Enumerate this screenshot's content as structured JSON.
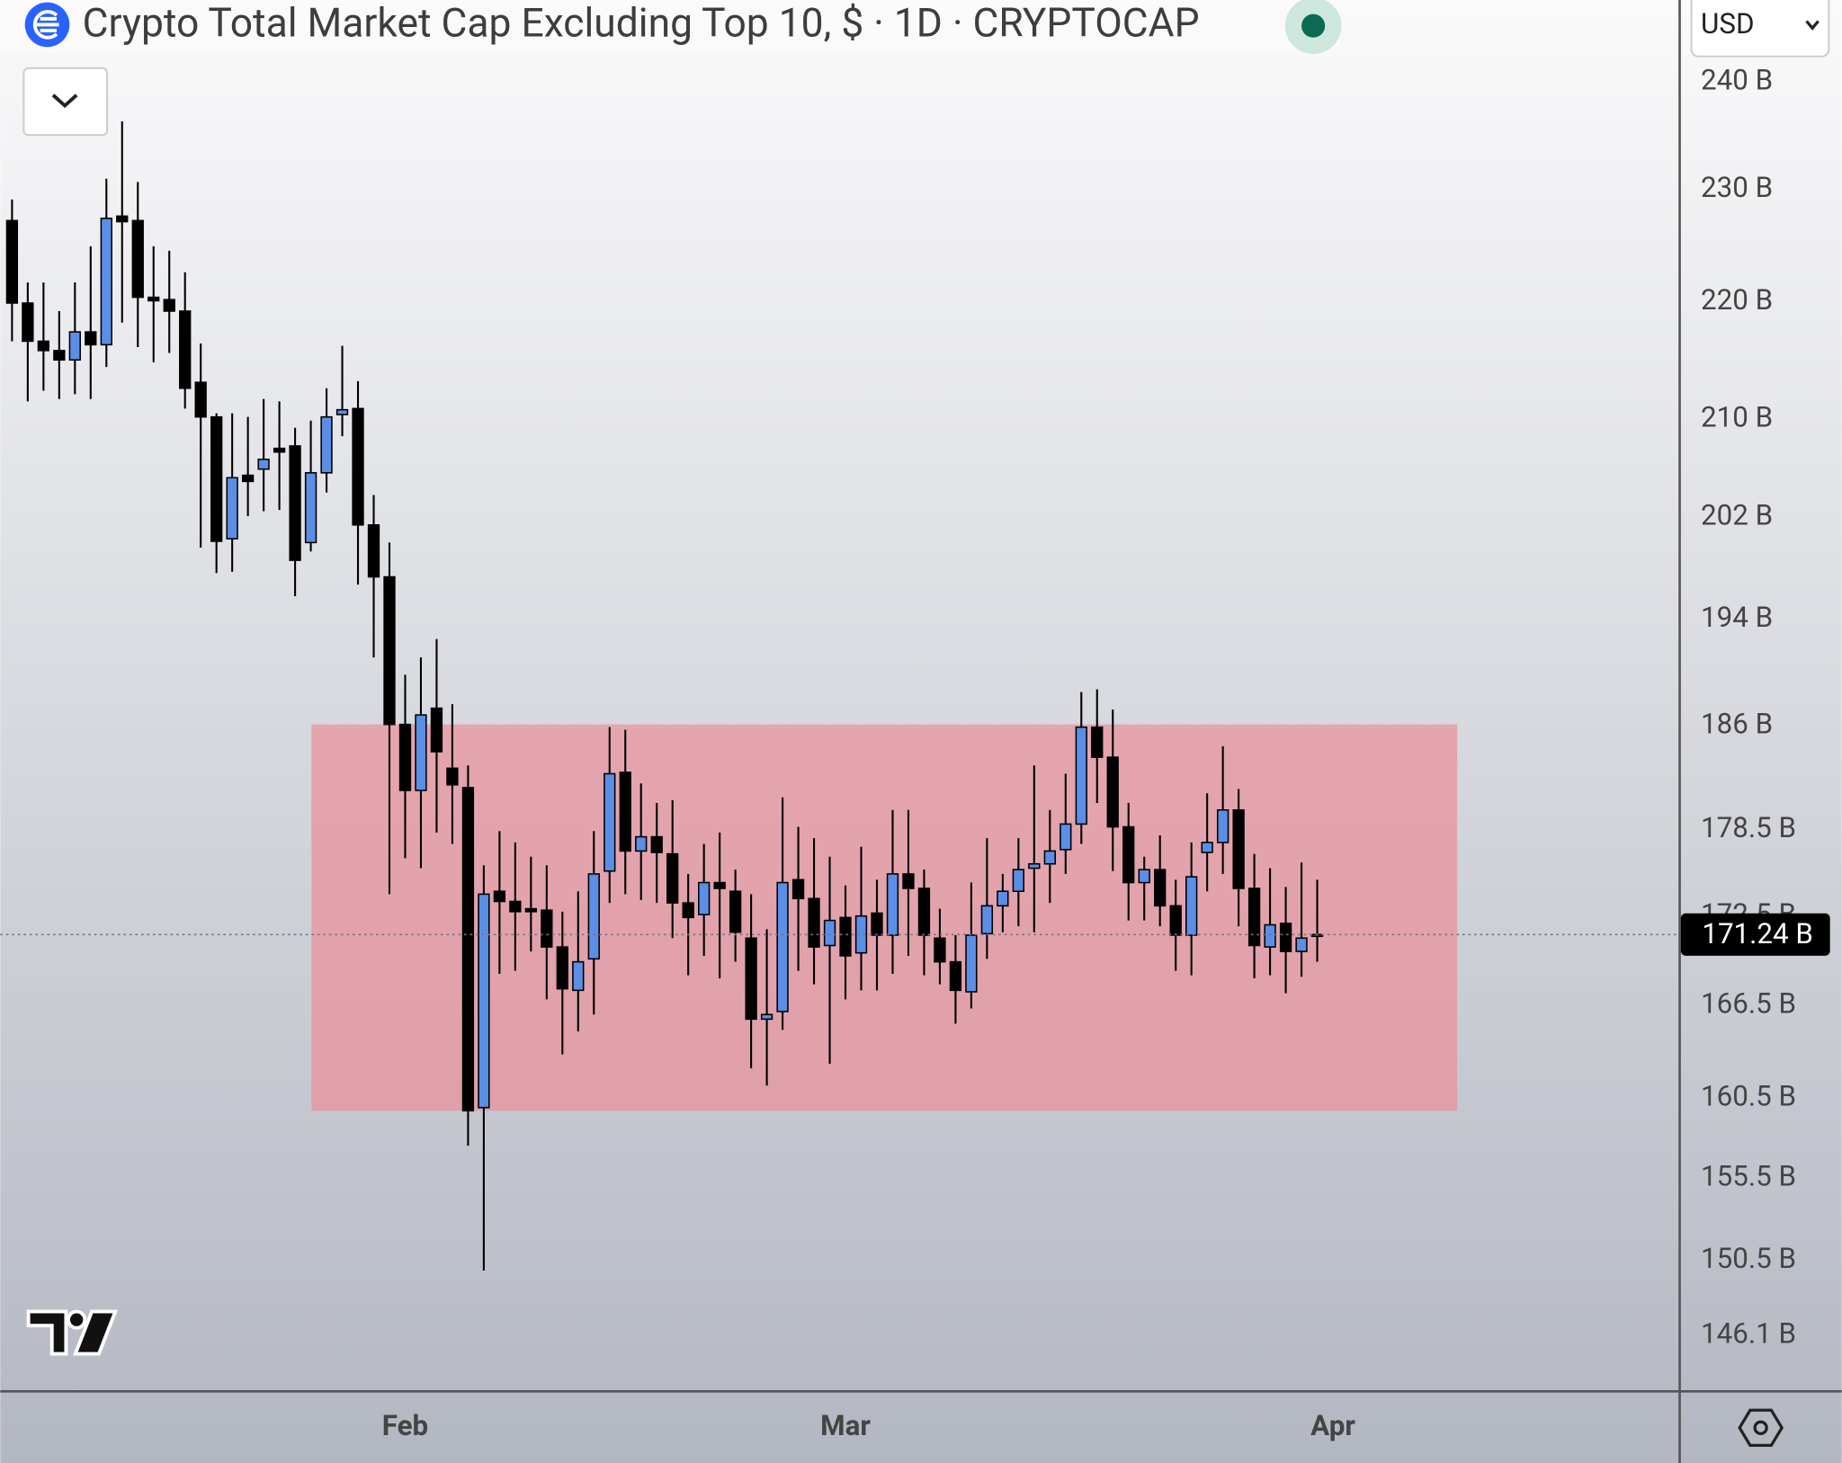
{
  "ui": {
    "currency": "USD"
  },
  "chart_data": {
    "type": "candlestick",
    "title": "Crypto Total Market Cap Excluding Top 10, $ · 1D · CRYPTOCAP",
    "log_scale": true,
    "grid": false,
    "bull_color": "#5b8fe6",
    "bear_color": "#000000",
    "xlim": [
      -0.75,
      106.05
    ],
    "xticks": [
      {
        "value": 25,
        "label": "Feb"
      },
      {
        "value": 53,
        "label": "Mar"
      },
      {
        "value": 84,
        "label": "Apr"
      }
    ],
    "ylim": [
      142.9,
      247.94
    ],
    "yticks": [
      {
        "value": 240,
        "label": "240 B"
      },
      {
        "value": 230,
        "label": "230 B"
      },
      {
        "value": 220,
        "label": "220 B"
      },
      {
        "value": 210,
        "label": "210 B"
      },
      {
        "value": 202,
        "label": "202 B"
      },
      {
        "value": 194,
        "label": "194 B"
      },
      {
        "value": 186,
        "label": "186 B"
      },
      {
        "value": 178.5,
        "label": "178.5 B"
      },
      {
        "value": 172.5,
        "label": "172.5 B"
      },
      {
        "value": 166.5,
        "label": "166.5 B"
      },
      {
        "value": 160.5,
        "label": "160.5 B"
      },
      {
        "value": 155.5,
        "label": "155.5 B"
      },
      {
        "value": 150.5,
        "label": "150.5 B"
      },
      {
        "value": 146.1,
        "label": "146.1 B"
      }
    ],
    "open": [
      227.2,
      219.9,
      216.6,
      215.8,
      215.0,
      217.4,
      216.3,
      227.6,
      227.2,
      220.4,
      220.2,
      219.2,
      213.1,
      210.2,
      200.3,
      205.4,
      205.9,
      207.6,
      207.8,
      200.0,
      205.6,
      210.4,
      210.9,
      201.4,
      197.3,
      186.1,
      181.3,
      187.3,
      182.9,
      181.5,
      159.9,
      174.2,
      173.5,
      173.0,
      172.9,
      170.4,
      167.5,
      169.6,
      175.6,
      182.6,
      177.0,
      178.0,
      176.8,
      173.4,
      172.6,
      174.8,
      174.2,
      171.0,
      165.6,
      166.1,
      175.0,
      173.7,
      170.5,
      172.4,
      170.0,
      172.7,
      171.2,
      175.4,
      174.4,
      171.0,
      169.4,
      167.4,
      171.3,
      173.2,
      174.2,
      175.8,
      176.1,
      177.1,
      178.9,
      185.9,
      183.7,
      178.7,
      174.8,
      175.7,
      173.2,
      171.2,
      176.9,
      177.6,
      179.9,
      174.4,
      170.4,
      172.0,
      170.1,
      171.2
    ],
    "high": [
      229.1,
      221.7,
      221.7,
      219.2,
      221.7,
      224.9,
      231.0,
      236.3,
      230.7,
      224.9,
      224.5,
      222.6,
      216.4,
      210.5,
      210.5,
      210.2,
      211.7,
      211.5,
      209.3,
      209.9,
      212.6,
      216.2,
      213.2,
      203.8,
      200.0,
      189.8,
      191.1,
      192.5,
      187.6,
      183.1,
      176.0,
      178.4,
      177.6,
      176.6,
      176.0,
      172.8,
      174.2,
      178.4,
      185.9,
      185.7,
      181.8,
      180.4,
      180.6,
      175.4,
      177.5,
      178.3,
      175.7,
      174.0,
      171.6,
      180.8,
      178.7,
      177.9,
      176.6,
      174.6,
      177.3,
      175.0,
      179.9,
      179.9,
      175.7,
      173.0,
      171.2,
      174.8,
      177.9,
      175.4,
      177.9,
      183.1,
      179.9,
      182.5,
      188.5,
      188.7,
      187.2,
      180.4,
      176.6,
      178.1,
      175.0,
      177.6,
      181.1,
      184.5,
      181.4,
      176.8,
      175.8,
      174.5,
      176.2,
      175.0
    ],
    "low": [
      216.6,
      211.5,
      212.4,
      211.7,
      212.1,
      211.7,
      214.4,
      218.2,
      216.1,
      214.8,
      215.6,
      210.9,
      199.6,
      197.6,
      197.7,
      202.1,
      202.5,
      202.6,
      195.8,
      199.3,
      204.0,
      208.6,
      196.7,
      191.1,
      174.0,
      176.5,
      175.8,
      178.3,
      177.5,
      157.5,
      149.9,
      168.6,
      168.8,
      170.1,
      166.9,
      163.3,
      164.8,
      165.9,
      173.4,
      174.0,
      173.6,
      173.4,
      171.0,
      168.5,
      169.8,
      168.3,
      169.4,
      162.4,
      161.3,
      164.9,
      168.8,
      167.9,
      162.7,
      166.9,
      167.5,
      167.5,
      168.6,
      169.8,
      168.5,
      167.9,
      165.3,
      166.3,
      169.6,
      171.4,
      171.8,
      171.4,
      173.4,
      175.4,
      177.5,
      180.4,
      175.6,
      172.2,
      172.2,
      171.8,
      168.8,
      168.5,
      174.2,
      175.4,
      171.8,
      168.3,
      168.5,
      167.3,
      168.4,
      169.4
    ],
    "close": [
      219.9,
      216.6,
      215.8,
      215.0,
      217.4,
      216.3,
      227.4,
      227.1,
      220.4,
      220.1,
      219.2,
      212.6,
      210.2,
      200.1,
      205.2,
      204.9,
      206.7,
      207.3,
      198.6,
      205.6,
      210.2,
      210.8,
      201.4,
      197.3,
      186.1,
      181.3,
      186.8,
      184.1,
      181.7,
      159.7,
      174.0,
      173.5,
      172.8,
      172.8,
      170.4,
      167.6,
      169.4,
      175.4,
      182.5,
      177.0,
      178.0,
      176.9,
      173.4,
      172.4,
      174.8,
      174.4,
      171.4,
      165.6,
      165.9,
      174.8,
      173.7,
      170.4,
      172.2,
      169.8,
      172.5,
      171.2,
      175.4,
      174.4,
      171.2,
      169.4,
      167.5,
      171.2,
      173.2,
      174.2,
      175.7,
      176.1,
      177.0,
      178.9,
      185.9,
      183.7,
      178.7,
      174.8,
      175.7,
      173.2,
      171.2,
      175.2,
      177.6,
      179.9,
      174.4,
      170.5,
      171.9,
      170.1,
      171.0,
      171.24
    ],
    "zone": {
      "x": [
        19.04,
        91.9
      ],
      "y": [
        159.7,
        186.1
      ],
      "color": "#e8939e"
    },
    "last_price": {
      "value": 171.24,
      "label": "171.24 B"
    }
  }
}
